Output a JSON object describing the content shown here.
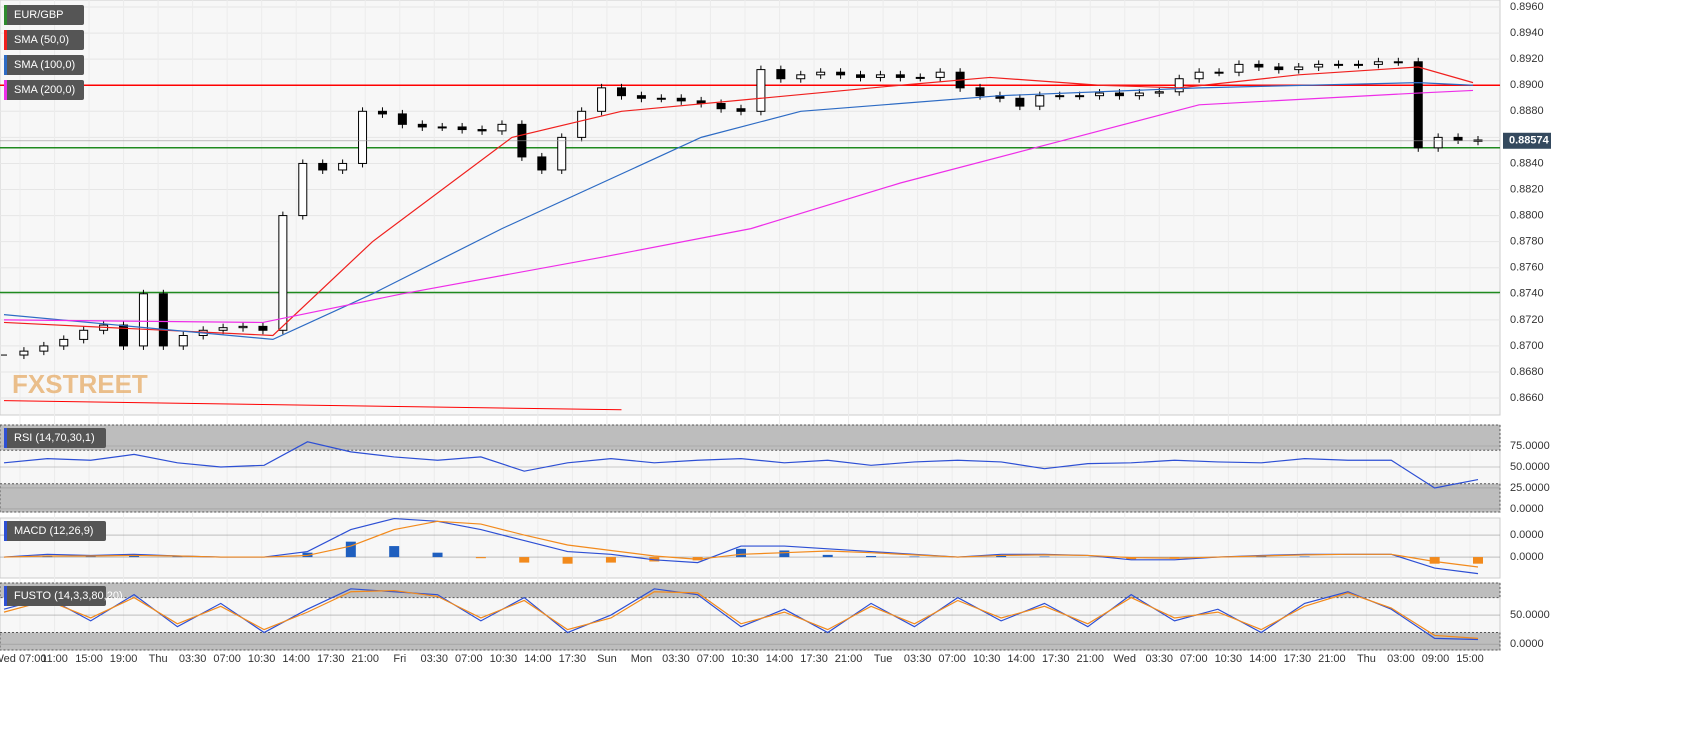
{
  "chart_data": [
    {
      "type": "candlestick",
      "title": "EUR/GBP",
      "watermark": "FXSTREET",
      "close": [
        0.8693,
        0.8696,
        0.87,
        0.8705,
        0.8712,
        0.8716,
        0.87,
        0.874,
        0.87,
        0.8708,
        0.8712,
        0.8714,
        0.8715,
        0.8712,
        0.88,
        0.884,
        0.8835,
        0.884,
        0.888,
        0.8878,
        0.887,
        0.8868,
        0.8868,
        0.8866,
        0.8865,
        0.887,
        0.8845,
        0.8835,
        0.886,
        0.888,
        0.8898,
        0.8892,
        0.889,
        0.889,
        0.8888,
        0.8886,
        0.8882,
        0.888,
        0.8912,
        0.8905,
        0.8908,
        0.891,
        0.8908,
        0.8906,
        0.8908,
        0.8906,
        0.8906,
        0.891,
        0.8898,
        0.8892,
        0.889,
        0.8884,
        0.8892,
        0.8892,
        0.8892,
        0.8894,
        0.8892,
        0.8894,
        0.8895,
        0.8905,
        0.891,
        0.891,
        0.8916,
        0.8914,
        0.8912,
        0.8914,
        0.8916,
        0.8916,
        0.8916,
        0.8918,
        0.8918,
        0.8852,
        0.886,
        0.8858,
        0.8857
      ],
      "ylim": [
        0.8647,
        0.89654
      ],
      "yticks": [
        {
          "value": 0.896,
          "label": "0.8960"
        },
        {
          "value": 0.894,
          "label": "0.8940"
        },
        {
          "value": 0.892,
          "label": "0.8920"
        },
        {
          "value": 0.89,
          "label": "0.8900"
        },
        {
          "value": 0.888,
          "label": "0.8880"
        },
        {
          "value": 0.886,
          "label": "0.8860"
        },
        {
          "value": 0.884,
          "label": "0.8840"
        },
        {
          "value": 0.882,
          "label": "0.8820"
        },
        {
          "value": 0.88,
          "label": "0.8800"
        },
        {
          "value": 0.878,
          "label": "0.8780"
        },
        {
          "value": 0.876,
          "label": "0.8760"
        },
        {
          "value": 0.874,
          "label": "0.8740"
        },
        {
          "value": 0.872,
          "label": "0.8720"
        },
        {
          "value": 0.87,
          "label": "0.8700"
        },
        {
          "value": 0.868,
          "label": "0.8680"
        },
        {
          "value": 0.866,
          "label": "0.8660"
        }
      ],
      "series": [
        {
          "name": "SMA (50,0)",
          "color": "#f0201e",
          "x": [
            0,
            13.5,
            18.5,
            25.5,
            31,
            38,
            45,
            49.5,
            55,
            59,
            65,
            71,
            73.75
          ],
          "values": [
            0.8718,
            0.8708,
            0.878,
            0.886,
            0.888,
            0.889,
            0.89,
            0.8906,
            0.89,
            0.8898,
            0.8908,
            0.8914,
            0.8902
          ]
        },
        {
          "name": "SMA (100,0)",
          "color": "#2d6bc4",
          "x": [
            0,
            13.5,
            18.5,
            25,
            35,
            40,
            50,
            60,
            71,
            73.75
          ],
          "values": [
            0.8724,
            0.8705,
            0.874,
            0.879,
            0.886,
            0.888,
            0.8892,
            0.8898,
            0.8902,
            0.89
          ]
        },
        {
          "name": "SMA (200,0)",
          "color": "#ee2ee8",
          "x": [
            0,
            13,
            20,
            30,
            37.5,
            45,
            52.5,
            60,
            71,
            73.75
          ],
          "values": [
            0.872,
            0.8718,
            0.874,
            0.8768,
            0.879,
            0.8825,
            0.8855,
            0.8885,
            0.8894,
            0.8896
          ]
        }
      ],
      "hlines": [
        {
          "value": 0.89,
          "color": "#ff0000"
        },
        {
          "value": 0.8852,
          "color": "#1f8a1f"
        },
        {
          "value": 0.8741,
          "color": "#1f8a1f"
        }
      ],
      "trendline": {
        "x": [
          0,
          31
        ],
        "values": [
          0.8658,
          0.8651
        ],
        "color": "#ff0000"
      },
      "last_price": 0.88574,
      "time_labels": [
        "Wed 07:00",
        "11:00",
        "15:00",
        "19:00",
        "Thu",
        "03:30",
        "07:00",
        "10:30",
        "14:00",
        "17:30",
        "21:00",
        "Fri",
        "03:30",
        "07:00",
        "10:30",
        "14:00",
        "17:30",
        "Sun",
        "Mon",
        "03:30",
        "07:00",
        "10:30",
        "14:00",
        "17:30",
        "21:00",
        "Tue",
        "03:30",
        "07:00",
        "10:30",
        "14:00",
        "17:30",
        "21:00",
        "Wed",
        "03:30",
        "07:00",
        "10:30",
        "14:00",
        "17:30",
        "21:00",
        "Thu",
        "03:00",
        "09:00",
        "15:00"
      ]
    },
    {
      "type": "rsi",
      "title": "RSI (14,70,30,1)",
      "ylim": [
        -3.6,
        100
      ],
      "levels": [
        30,
        70
      ],
      "yticks": [
        {
          "value": 75,
          "label": "75.0000"
        },
        {
          "value": 50,
          "label": "50.0000"
        },
        {
          "value": 25,
          "label": "25.0000"
        },
        {
          "value": 0,
          "label": "0.0000"
        }
      ],
      "series": [
        {
          "name": "RSI",
          "color": "#2d4fd4",
          "values": [
            55,
            60,
            58,
            65,
            55,
            50,
            52,
            80,
            68,
            62,
            58,
            62,
            45,
            55,
            60,
            55,
            58,
            60,
            55,
            58,
            52,
            56,
            58,
            56,
            48,
            54,
            55,
            58,
            56,
            55,
            60,
            58,
            58,
            25,
            35
          ]
        }
      ]
    },
    {
      "type": "macd",
      "title": "MACD (12,26,9)",
      "ylim": [
        -3.8e-05,
        7.1e-05
      ],
      "yticks": [
        {
          "value": 4e-05,
          "label": "0.0000"
        },
        {
          "value": 0,
          "label": "0.0000"
        }
      ],
      "histogram": [
        0,
        3e-06,
        2e-06,
        3e-06,
        1e-06,
        0,
        0,
        8e-06,
        2.8e-05,
        2e-05,
        8e-06,
        -2e-06,
        -1e-05,
        -1.2e-05,
        -1e-05,
        -8e-06,
        -6e-06,
        1.5e-05,
        1.2e-05,
        4e-06,
        2e-06,
        1e-06,
        0,
        2e-06,
        1e-06,
        0,
        -4e-06,
        -3e-06,
        0,
        1e-06,
        1e-06,
        0,
        0,
        -1.2e-05,
        -1.2e-05
      ],
      "series": [
        {
          "name": "MACD",
          "color": "#2d4fd4",
          "values": [
            0,
            5e-06,
            3e-06,
            5e-06,
            2e-06,
            0,
            0,
            1e-05,
            5e-05,
            7e-05,
            6.5e-05,
            5e-05,
            3e-05,
            1e-05,
            5e-06,
            -5e-06,
            -1e-05,
            2e-05,
            2e-05,
            1.5e-05,
            1e-05,
            5e-06,
            0,
            5e-06,
            5e-06,
            3e-06,
            -5e-06,
            -5e-06,
            0,
            3e-06,
            5e-06,
            5e-06,
            5e-06,
            -2e-05,
            -3e-05
          ]
        },
        {
          "name": "Signal",
          "color": "#f28a1c",
          "values": [
            0,
            2e-06,
            2e-06,
            3e-06,
            2e-06,
            0,
            0,
            3e-06,
            2e-05,
            5e-05,
            6.5e-05,
            6e-05,
            4e-05,
            2.2e-05,
            1.2e-05,
            2e-06,
            -4e-06,
            5e-06,
            8e-06,
            1.1e-05,
            8e-06,
            4e-06,
            0,
            3e-06,
            4e-06,
            3e-06,
            -1e-06,
            -2e-06,
            0,
            2e-06,
            4e-06,
            5e-06,
            5e-06,
            -8e-06,
            -1.8e-05
          ]
        }
      ]
    },
    {
      "type": "stochastic",
      "title": "FUSTO (14,3,3,80,20)",
      "ylim": [
        -10,
        105
      ],
      "levels": [
        20,
        80
      ],
      "yticks": [
        {
          "value": 50,
          "label": "50.0000"
        },
        {
          "value": 0,
          "label": "0.0000"
        }
      ],
      "series": [
        {
          "name": "K",
          "color": "#2d4fd4",
          "values": [
            60,
            80,
            40,
            85,
            30,
            70,
            20,
            60,
            95,
            90,
            85,
            40,
            80,
            20,
            50,
            95,
            85,
            30,
            60,
            20,
            70,
            30,
            80,
            40,
            70,
            30,
            85,
            40,
            60,
            20,
            70,
            90,
            60,
            10,
            8
          ]
        },
        {
          "name": "D",
          "color": "#f28a1c",
          "values": [
            55,
            75,
            45,
            80,
            35,
            65,
            25,
            55,
            90,
            92,
            82,
            45,
            75,
            25,
            45,
            90,
            88,
            35,
            55,
            25,
            65,
            35,
            75,
            45,
            65,
            35,
            80,
            45,
            55,
            25,
            65,
            88,
            62,
            15,
            10
          ]
        }
      ]
    }
  ]
}
